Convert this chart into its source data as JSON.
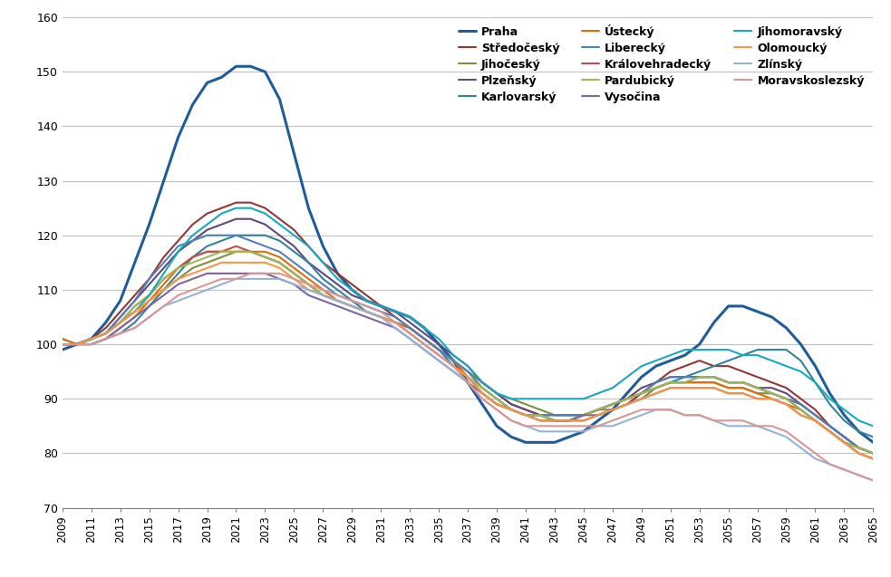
{
  "years": [
    2009,
    2010,
    2011,
    2012,
    2013,
    2014,
    2015,
    2016,
    2017,
    2018,
    2019,
    2020,
    2021,
    2022,
    2023,
    2024,
    2025,
    2026,
    2027,
    2028,
    2029,
    2030,
    2031,
    2032,
    2033,
    2034,
    2035,
    2036,
    2037,
    2038,
    2039,
    2040,
    2041,
    2042,
    2043,
    2044,
    2045,
    2046,
    2047,
    2048,
    2049,
    2050,
    2051,
    2052,
    2053,
    2054,
    2055,
    2056,
    2057,
    2058,
    2059,
    2060,
    2061,
    2062,
    2063,
    2064,
    2065
  ],
  "series": [
    {
      "name": "Praha",
      "color": "#1F5C99",
      "linewidth": 2.2,
      "values": [
        99,
        100,
        101,
        104,
        108,
        115,
        122,
        130,
        138,
        144,
        148,
        149,
        151,
        151,
        150,
        145,
        135,
        125,
        118,
        113,
        110,
        108,
        107,
        106,
        105,
        103,
        100,
        97,
        93,
        89,
        85,
        83,
        82,
        82,
        82,
        83,
        84,
        86,
        88,
        91,
        94,
        96,
        97,
        98,
        100,
        104,
        107,
        107,
        106,
        105,
        103,
        100,
        96,
        91,
        87,
        84,
        82
      ]
    },
    {
      "name": "Středočeský",
      "color": "#943634",
      "linewidth": 1.5,
      "values": [
        100,
        100,
        101,
        103,
        106,
        109,
        112,
        116,
        119,
        122,
        124,
        125,
        126,
        126,
        125,
        123,
        121,
        118,
        115,
        113,
        111,
        109,
        107,
        105,
        103,
        101,
        99,
        97,
        95,
        93,
        91,
        89,
        88,
        87,
        86,
        86,
        86,
        87,
        88,
        89,
        91,
        93,
        95,
        96,
        97,
        96,
        96,
        95,
        94,
        93,
        92,
        90,
        88,
        85,
        83,
        81,
        80
      ]
    },
    {
      "name": "Jihočeský",
      "color": "#76923C",
      "linewidth": 1.5,
      "values": [
        100,
        100,
        101,
        102,
        104,
        106,
        108,
        110,
        112,
        114,
        115,
        116,
        117,
        117,
        116,
        115,
        113,
        111,
        109,
        108,
        107,
        106,
        105,
        104,
        103,
        101,
        99,
        97,
        95,
        93,
        91,
        90,
        89,
        88,
        87,
        87,
        87,
        88,
        88,
        89,
        90,
        92,
        93,
        93,
        93,
        93,
        92,
        92,
        91,
        91,
        90,
        89,
        87,
        85,
        83,
        81,
        80
      ]
    },
    {
      "name": "Plzeňský",
      "color": "#60497A",
      "linewidth": 1.5,
      "values": [
        100,
        100,
        101,
        102,
        105,
        108,
        111,
        114,
        117,
        119,
        121,
        122,
        123,
        123,
        122,
        120,
        118,
        115,
        113,
        111,
        109,
        108,
        107,
        106,
        104,
        102,
        100,
        98,
        96,
        93,
        91,
        89,
        88,
        87,
        87,
        87,
        87,
        88,
        89,
        90,
        92,
        93,
        94,
        94,
        94,
        94,
        93,
        93,
        92,
        92,
        91,
        89,
        87,
        85,
        83,
        81,
        80
      ]
    },
    {
      "name": "Karlovarský",
      "color": "#31849B",
      "linewidth": 1.5,
      "values": [
        101,
        100,
        100,
        101,
        102,
        104,
        107,
        110,
        113,
        116,
        118,
        119,
        120,
        120,
        120,
        119,
        117,
        115,
        112,
        110,
        108,
        106,
        105,
        104,
        103,
        101,
        99,
        96,
        94,
        91,
        89,
        88,
        87,
        87,
        86,
        86,
        87,
        88,
        89,
        90,
        91,
        92,
        93,
        94,
        95,
        96,
        97,
        98,
        99,
        99,
        99,
        97,
        93,
        89,
        86,
        84,
        83
      ]
    },
    {
      "name": "Ústecký",
      "color": "#E36C09",
      "linewidth": 1.5,
      "values": [
        101,
        100,
        100,
        101,
        103,
        105,
        108,
        111,
        114,
        116,
        117,
        117,
        117,
        117,
        117,
        116,
        114,
        112,
        110,
        108,
        107,
        106,
        105,
        104,
        103,
        101,
        99,
        97,
        94,
        91,
        89,
        88,
        87,
        86,
        86,
        86,
        87,
        88,
        89,
        90,
        91,
        92,
        93,
        93,
        93,
        93,
        92,
        92,
        91,
        90,
        89,
        88,
        86,
        84,
        82,
        80,
        79
      ]
    },
    {
      "name": "Liberecký",
      "color": "#4F81BD",
      "linewidth": 1.5,
      "values": [
        100,
        100,
        101,
        102,
        105,
        108,
        112,
        115,
        118,
        119,
        120,
        120,
        120,
        119,
        118,
        117,
        115,
        113,
        111,
        109,
        108,
        107,
        106,
        105,
        103,
        101,
        99,
        97,
        95,
        92,
        90,
        88,
        87,
        87,
        87,
        87,
        87,
        88,
        89,
        90,
        91,
        93,
        94,
        94,
        94,
        94,
        93,
        93,
        92,
        91,
        90,
        89,
        87,
        85,
        83,
        81,
        80
      ]
    },
    {
      "name": "Královehradecký",
      "color": "#C0504D",
      "linewidth": 1.5,
      "values": [
        100,
        100,
        101,
        102,
        104,
        107,
        109,
        112,
        114,
        116,
        117,
        117,
        118,
        117,
        116,
        115,
        113,
        111,
        109,
        108,
        107,
        106,
        105,
        104,
        102,
        100,
        98,
        96,
        94,
        92,
        90,
        88,
        87,
        87,
        86,
        86,
        87,
        88,
        89,
        90,
        91,
        92,
        93,
        93,
        94,
        94,
        93,
        93,
        92,
        91,
        90,
        88,
        86,
        84,
        82,
        81,
        80
      ]
    },
    {
      "name": "Pardubický",
      "color": "#9BBB59",
      "linewidth": 1.5,
      "values": [
        100,
        100,
        101,
        102,
        104,
        107,
        109,
        112,
        114,
        115,
        116,
        117,
        117,
        117,
        116,
        115,
        113,
        111,
        109,
        108,
        107,
        106,
        105,
        104,
        102,
        100,
        98,
        96,
        94,
        92,
        90,
        88,
        87,
        87,
        86,
        86,
        87,
        88,
        89,
        90,
        91,
        92,
        93,
        93,
        94,
        94,
        93,
        93,
        92,
        91,
        90,
        88,
        86,
        84,
        82,
        81,
        80
      ]
    },
    {
      "name": "Vysočina",
      "color": "#8064A2",
      "linewidth": 1.5,
      "values": [
        100,
        100,
        100,
        101,
        103,
        105,
        107,
        109,
        111,
        112,
        113,
        113,
        113,
        113,
        113,
        112,
        111,
        109,
        108,
        107,
        106,
        105,
        104,
        103,
        101,
        99,
        97,
        95,
        93,
        91,
        89,
        88,
        87,
        86,
        86,
        86,
        87,
        87,
        88,
        89,
        90,
        91,
        92,
        92,
        92,
        92,
        91,
        91,
        90,
        90,
        89,
        87,
        86,
        84,
        82,
        80,
        79
      ]
    },
    {
      "name": "Jihomoravský",
      "color": "#17A9C0",
      "linewidth": 1.5,
      "values": [
        100,
        100,
        101,
        102,
        104,
        106,
        109,
        113,
        117,
        120,
        122,
        124,
        125,
        125,
        124,
        122,
        120,
        118,
        115,
        112,
        110,
        108,
        107,
        106,
        105,
        103,
        101,
        98,
        96,
        93,
        91,
        90,
        90,
        90,
        90,
        90,
        90,
        91,
        92,
        94,
        96,
        97,
        98,
        99,
        99,
        99,
        99,
        98,
        98,
        97,
        96,
        95,
        93,
        90,
        88,
        86,
        85
      ]
    },
    {
      "name": "Olomoucký",
      "color": "#F79646",
      "linewidth": 1.5,
      "values": [
        100,
        100,
        101,
        102,
        104,
        106,
        108,
        110,
        112,
        113,
        114,
        115,
        115,
        115,
        115,
        114,
        112,
        110,
        109,
        108,
        107,
        106,
        105,
        104,
        102,
        100,
        98,
        96,
        94,
        91,
        89,
        88,
        87,
        86,
        86,
        86,
        86,
        87,
        88,
        89,
        90,
        91,
        92,
        92,
        92,
        92,
        91,
        91,
        90,
        90,
        89,
        87,
        86,
        84,
        82,
        80,
        79
      ]
    },
    {
      "name": "Zlínský",
      "color": "#95B3D7",
      "linewidth": 1.5,
      "values": [
        100,
        100,
        100,
        101,
        102,
        103,
        105,
        107,
        108,
        109,
        110,
        111,
        112,
        112,
        112,
        112,
        111,
        110,
        109,
        108,
        107,
        106,
        105,
        103,
        101,
        99,
        97,
        95,
        93,
        90,
        88,
        86,
        85,
        84,
        84,
        84,
        84,
        85,
        85,
        86,
        87,
        88,
        88,
        87,
        87,
        86,
        85,
        85,
        85,
        84,
        83,
        81,
        79,
        78,
        77,
        76,
        75
      ]
    },
    {
      "name": "Moravskoslezský",
      "color": "#D99694",
      "linewidth": 1.5,
      "values": [
        100,
        100,
        100,
        101,
        102,
        103,
        105,
        107,
        109,
        110,
        111,
        112,
        112,
        113,
        113,
        113,
        112,
        111,
        110,
        109,
        108,
        107,
        106,
        104,
        102,
        100,
        98,
        96,
        93,
        90,
        88,
        86,
        85,
        85,
        85,
        85,
        85,
        85,
        86,
        87,
        88,
        88,
        88,
        87,
        87,
        86,
        86,
        86,
        85,
        85,
        84,
        82,
        80,
        78,
        77,
        76,
        75
      ]
    }
  ],
  "xlim": [
    2009,
    2065
  ],
  "ylim": [
    70,
    160
  ],
  "yticks": [
    70,
    80,
    90,
    100,
    110,
    120,
    130,
    140,
    150,
    160
  ],
  "xtick_years": [
    2009,
    2011,
    2013,
    2015,
    2017,
    2019,
    2021,
    2023,
    2025,
    2027,
    2029,
    2031,
    2033,
    2035,
    2037,
    2039,
    2041,
    2043,
    2045,
    2047,
    2049,
    2051,
    2053,
    2055,
    2057,
    2059,
    2061,
    2063,
    2065
  ],
  "background_color": "#FFFFFF",
  "grid_color": "#C0C0C0",
  "legend_order": [
    "Praha",
    "Středočeský",
    "Jihočeský",
    "Plzeňský",
    "Karlovarský",
    "Ústecký",
    "Liberecký",
    "Královehradecký",
    "Pardubický",
    "Vysočina",
    "Jihomoravský",
    "Olomoucký",
    "Zlínský",
    "Moravskoslezský"
  ]
}
